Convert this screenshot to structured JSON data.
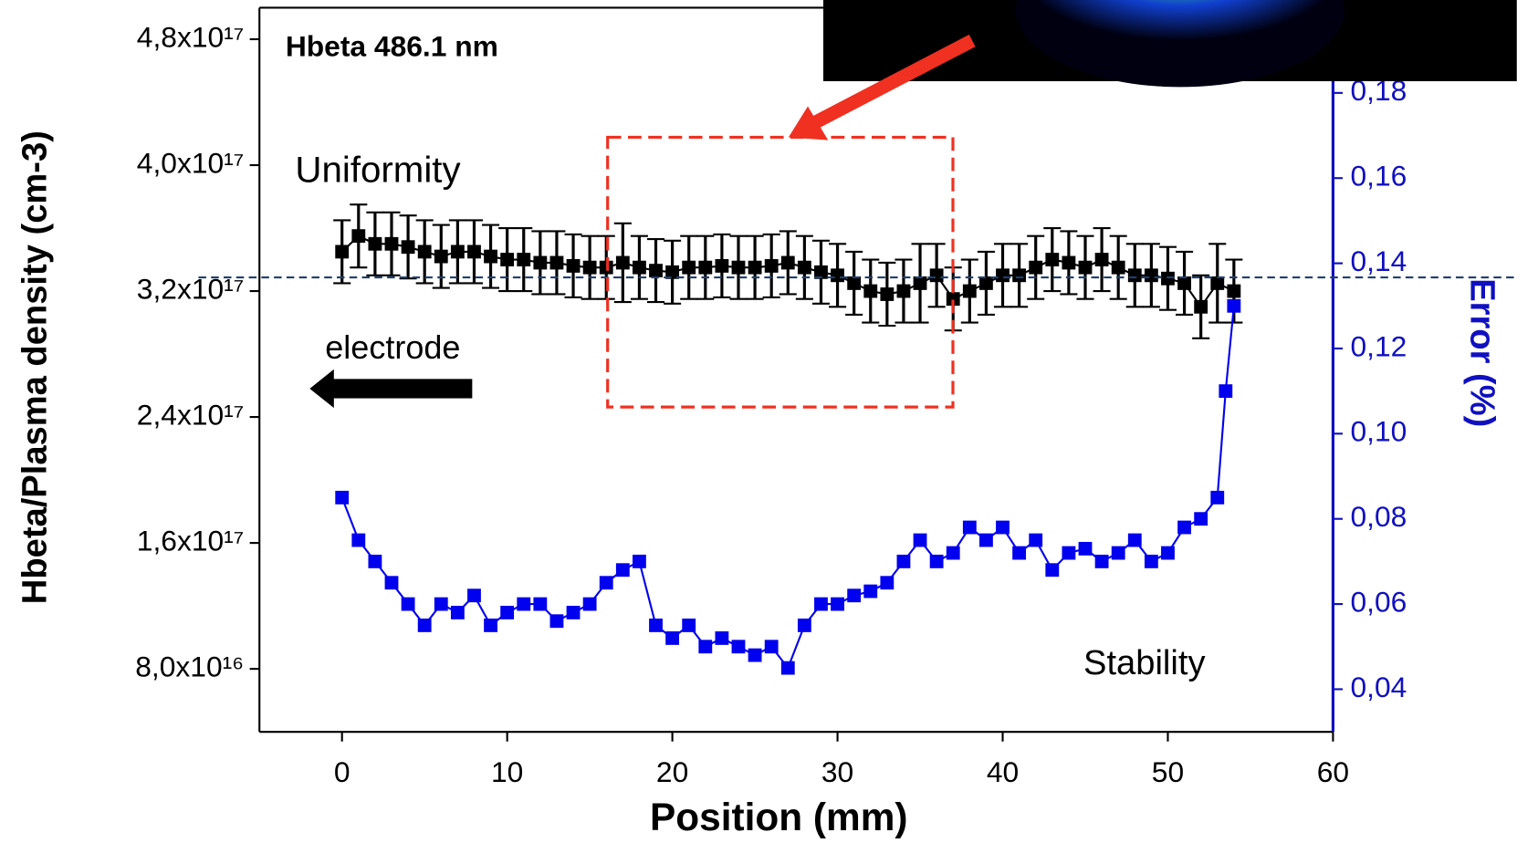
{
  "chart_data": {
    "type": "scatter",
    "title": "Hbeta 486.1 nm",
    "x_label": "Position (mm)",
    "y_label": "Hbeta/Plasma density (cm-3)",
    "y2_label": "Error (%)",
    "annotations": [
      "Uniformity",
      "electrode",
      "Stability"
    ],
    "xlim": [
      -5,
      60
    ],
    "xticks": [
      0,
      10,
      20,
      30,
      40,
      50,
      60
    ],
    "ylim": [
      4e+16,
      5e+17
    ],
    "yticks": [
      {
        "value": 8e+16,
        "label": "8,0x10¹⁶"
      },
      {
        "value": 1.6e+17,
        "label": "1,6x10¹⁷"
      },
      {
        "value": 2.4e+17,
        "label": "2,4x10¹⁷"
      },
      {
        "value": 3.2e+17,
        "label": "3,2x10¹⁷"
      },
      {
        "value": 4e+17,
        "label": "4,0x10¹⁷"
      },
      {
        "value": 4.8e+17,
        "label": "4,8x10¹⁷"
      }
    ],
    "y2lim": [
      0.03,
      0.2
    ],
    "y2ticks": [
      {
        "value": 0.04,
        "label": "0,04"
      },
      {
        "value": 0.06,
        "label": "0,06"
      },
      {
        "value": 0.08,
        "label": "0,08"
      },
      {
        "value": 0.1,
        "label": "0,10"
      },
      {
        "value": 0.12,
        "label": "0,12"
      },
      {
        "value": 0.14,
        "label": "0,14"
      },
      {
        "value": 0.16,
        "label": "0,16"
      },
      {
        "value": 0.18,
        "label": "0,18"
      }
    ],
    "series": [
      {
        "color": "#000000",
        "x": [
          0,
          1,
          2,
          3,
          4,
          5,
          6,
          7,
          8,
          9,
          10,
          11,
          12,
          13,
          14,
          15,
          16,
          17,
          18,
          19,
          20,
          21,
          22,
          23,
          24,
          25,
          26,
          27,
          28,
          29,
          30,
          31,
          32,
          33,
          34,
          35,
          36,
          37,
          38,
          39,
          40,
          41,
          42,
          43,
          44,
          45,
          46,
          47,
          48,
          49,
          50,
          51,
          52,
          53,
          54
        ],
        "values": [
          3.45e+17,
          3.55e+17,
          3.5e+17,
          3.5e+17,
          3.48e+17,
          3.45e+17,
          3.42e+17,
          3.45e+17,
          3.45e+17,
          3.42e+17,
          3.4e+17,
          3.4e+17,
          3.38e+17,
          3.38e+17,
          3.36e+17,
          3.35e+17,
          3.35e+17,
          3.38e+17,
          3.35e+17,
          3.33e+17,
          3.32e+17,
          3.35e+17,
          3.35e+17,
          3.36e+17,
          3.35e+17,
          3.35e+17,
          3.36e+17,
          3.38e+17,
          3.35e+17,
          3.32e+17,
          3.3e+17,
          3.25e+17,
          3.2e+17,
          3.18e+17,
          3.2e+17,
          3.25e+17,
          3.3e+17,
          3.15e+17,
          3.2e+17,
          3.25e+17,
          3.3e+17,
          3.3e+17,
          3.35e+17,
          3.4e+17,
          3.38e+17,
          3.35e+17,
          3.4e+17,
          3.35e+17,
          3.3e+17,
          3.3e+17,
          3.28e+17,
          3.25e+17,
          3.1e+17,
          3.25e+17,
          3.2e+17
        ],
        "errors": [
          2e+16,
          2e+16,
          2e+16,
          2e+16,
          2e+16,
          2e+16,
          2e+16,
          2e+16,
          2e+16,
          2e+16,
          2e+16,
          2e+16,
          2e+16,
          2e+16,
          2e+16,
          2e+16,
          2e+16,
          2.5e+16,
          2e+16,
          2e+16,
          2e+16,
          2e+16,
          2e+16,
          2e+16,
          2e+16,
          2e+16,
          2e+16,
          2e+16,
          2e+16,
          2e+16,
          2e+16,
          2e+16,
          2e+16,
          2e+16,
          2e+16,
          2.5e+16,
          2e+16,
          2e+16,
          2e+16,
          2e+16,
          2e+16,
          2e+16,
          2e+16,
          2e+16,
          2e+16,
          2e+16,
          2e+16,
          2e+16,
          2e+16,
          2e+16,
          2e+16,
          2e+16,
          2e+16,
          2.5e+16,
          2e+16
        ]
      },
      {
        "color": "#0000ee",
        "axis": "y2",
        "x": [
          0,
          1,
          2,
          3,
          4,
          5,
          6,
          7,
          8,
          9,
          10,
          11,
          12,
          13,
          14,
          15,
          16,
          17,
          18,
          19,
          20,
          21,
          22,
          23,
          24,
          25,
          26,
          27,
          28,
          29,
          30,
          31,
          32,
          33,
          34,
          35,
          36,
          37,
          38,
          39,
          40,
          41,
          42,
          43,
          44,
          45,
          46,
          47,
          48,
          49,
          50,
          51,
          52,
          53,
          53.5,
          54
        ],
        "values": [
          0.085,
          0.075,
          0.07,
          0.065,
          0.06,
          0.055,
          0.06,
          0.058,
          0.062,
          0.055,
          0.058,
          0.06,
          0.06,
          0.056,
          0.058,
          0.06,
          0.065,
          0.068,
          0.07,
          0.055,
          0.052,
          0.055,
          0.05,
          0.052,
          0.05,
          0.048,
          0.05,
          0.045,
          0.055,
          0.06,
          0.06,
          0.062,
          0.063,
          0.065,
          0.07,
          0.075,
          0.07,
          0.072,
          0.078,
          0.075,
          0.078,
          0.072,
          0.075,
          0.068,
          0.072,
          0.073,
          0.07,
          0.072,
          0.075,
          0.07,
          0.072,
          0.078,
          0.08,
          0.085,
          0.11,
          0.13
        ]
      }
    ]
  }
}
